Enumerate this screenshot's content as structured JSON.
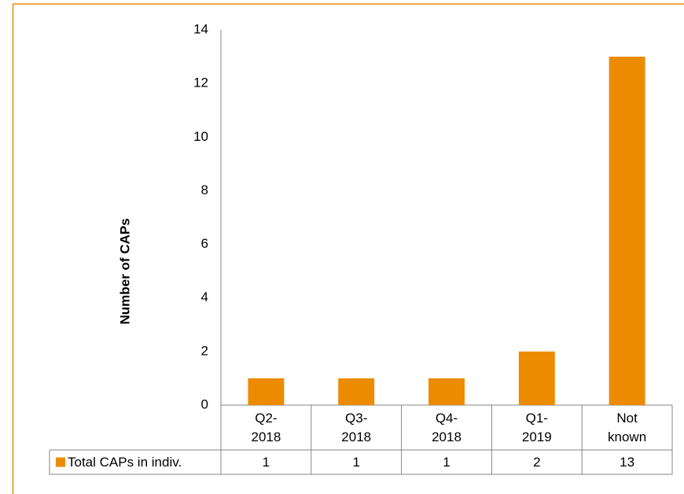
{
  "chart_data": {
    "type": "bar",
    "y_axis_label": "Number of CAPs",
    "categories": [
      "Q2-2018",
      "Q3-2018",
      "Q4-2018",
      "Q1-2019",
      "Not known"
    ],
    "series": [
      {
        "name": "Total CAPs in indiv.",
        "color": "#ed8b00",
        "values": [
          1,
          1,
          1,
          2,
          13
        ]
      }
    ],
    "ylim": [
      0,
      14
    ],
    "yticks": [
      0,
      2,
      4,
      6,
      8,
      10,
      12,
      14
    ],
    "grid": false
  }
}
